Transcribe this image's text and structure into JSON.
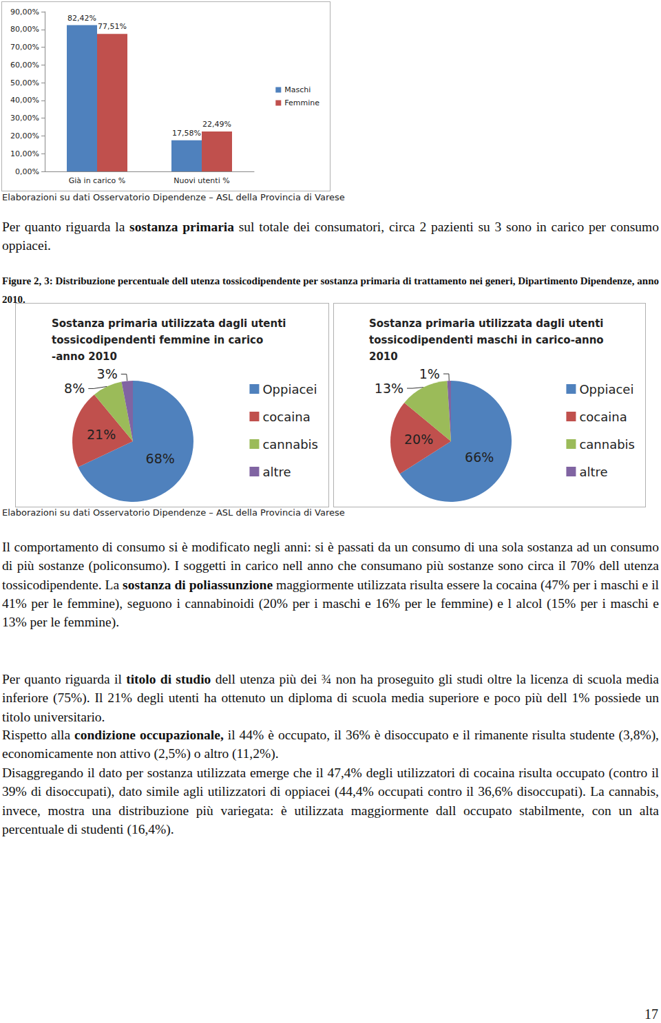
{
  "chart_data": [
    {
      "type": "bar",
      "categories": [
        "Già in carico %",
        "Nuovi utenti %"
      ],
      "series": [
        {
          "name": "Maschi",
          "color": "#4f81bd",
          "values": [
            82.42,
            17.58
          ],
          "value_labels": [
            "82,42%",
            "17,58%"
          ]
        },
        {
          "name": "Femmine",
          "color": "#c0504d",
          "values": [
            77.51,
            22.49
          ],
          "value_labels": [
            "77,51%",
            "22,49%"
          ]
        }
      ],
      "ylim": [
        0,
        90
      ],
      "yticks": [
        {
          "value": 0,
          "label": "0,00%"
        },
        {
          "value": 10,
          "label": "10,00%"
        },
        {
          "value": 20,
          "label": "20,00%"
        },
        {
          "value": 30,
          "label": "30,00%"
        },
        {
          "value": 40,
          "label": "40,00%"
        },
        {
          "value": 50,
          "label": "50,00%"
        },
        {
          "value": 60,
          "label": "60,00%"
        },
        {
          "value": 70,
          "label": "70,00%"
        },
        {
          "value": 80,
          "label": "80,00%"
        },
        {
          "value": 90,
          "label": "90,00%"
        }
      ],
      "grid": false,
      "legend": "right",
      "data_labels": true
    },
    {
      "type": "pie",
      "title": "Sostanza primaria utilizzata dagli utenti tossicodipendenti femmine in carico -anno 2010",
      "categories": [
        "Oppiacei",
        "cocaina",
        "cannabis",
        "altre"
      ],
      "values": [
        68,
        21,
        8,
        3
      ],
      "value_labels": [
        "68%",
        "21%",
        "8%",
        "3%"
      ],
      "colors": [
        "#4f81bd",
        "#c0504d",
        "#9bbb59",
        "#8064a2"
      ],
      "legend": "right",
      "data_labels": true
    },
    {
      "type": "pie",
      "title": "Sostanza primaria utilizzata dagli utenti tossicodipendenti maschi in carico-anno 2010",
      "categories": [
        "Oppiacei",
        "cocaina",
        "cannabis",
        "altre"
      ],
      "values": [
        66,
        20,
        13,
        1
      ],
      "value_labels": [
        "66%",
        "20%",
        "13%",
        "1%"
      ],
      "colors": [
        "#4f81bd",
        "#c0504d",
        "#9bbb59",
        "#8064a2"
      ],
      "legend": "right",
      "data_labels": true
    }
  ],
  "document": {
    "caption_1": "Elaborazioni su dati Osservatorio Dipendenze – ASL della Provincia di Varese",
    "paragraph_1": [
      {
        "text": "Per quanto riguarda la "
      },
      {
        "text": "sostanza primaria",
        "bold": true
      },
      {
        "text": " sul totale dei consumatori, circa 2 pazienti su 3 sono in carico per consumo oppiacei."
      }
    ],
    "figure_caption": "Figure 2, 3: Distribuzione percentuale dell utenza tossicodipendente per sostanza primaria di trattamento nei generi, Dipartimento Dipendenze, anno 2010.",
    "caption_2": "Elaborazioni su dati Osservatorio Dipendenze – ASL della Provincia di Varese",
    "paragraph_2": [
      {
        "text": "Il comportamento di consumo si è modificato negli anni: si è passati da un consumo di una sola sostanza ad un consumo di più sostanze (policonsumo). I soggetti in carico nell anno che consumano più sostanze sono circa il 70% dell utenza tossicodipendente. La "
      },
      {
        "text": "sostanza di poliassunzione",
        "bold": true
      },
      {
        "text": " maggiormente utilizzata risulta essere la cocaina (47% per i maschi e il 41% per le femmine), seguono i cannabinoidi (20% per i maschi e 16% per le femmine) e l alcol (15% per i maschi e 13% per le femmine)."
      }
    ],
    "paragraph_3": [
      {
        "text": "Per quanto riguarda il "
      },
      {
        "text": "titolo di studio",
        "bold": true
      },
      {
        "text": " dell utenza più dei ¾ non ha proseguito gli studi oltre la licenza di scuola media inferiore (75%). Il 21% degli utenti ha ottenuto un diploma di scuola media superiore e poco più dell 1% possiede un titolo universitario."
      }
    ],
    "paragraph_4": [
      {
        "text": "Rispetto alla "
      },
      {
        "text": "condizione occupazionale,",
        "bold": true
      },
      {
        "text": " il 44% è occupato, il 36% è disoccupato e il rimanente risulta studente (3,8%), economicamente non attivo (2,5%) o altro (11,2%)."
      }
    ],
    "paragraph_5": [
      {
        "text": "Disaggregando il dato per sostanza utilizzata emerge che il 47,4% degli utilizzatori di cocaina risulta occupato (contro il 39% di disoccupati), dato simile agli utilizzatori di oppiacei (44,4% occupati contro il 36,6% disoccupati). La cannabis, invece, mostra una distribuzione più variegata: è utilizzata maggiormente dall occupato stabilmente, con un alta percentuale di studenti (16,4%)."
      }
    ],
    "page_number": "17"
  }
}
